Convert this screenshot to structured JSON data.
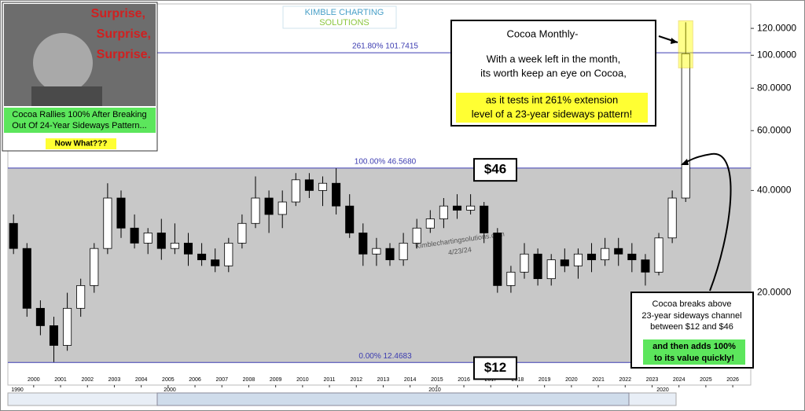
{
  "chart_data": {
    "type": "candlestick",
    "log_scale": true,
    "logo": [
      "KIMBLE CHARTING",
      "SOLUTIONS"
    ],
    "watermark": [
      "Kimblechartingsolutions.com",
      "4/23/24"
    ],
    "image_panel": {
      "headline": [
        "Surprise,",
        "Surprise,",
        "Surprise."
      ],
      "caption": [
        "Cocoa Rallies 100% After Breaking",
        "Out Of 24-Year Sideways Pattern..."
      ],
      "question": "Now What???"
    },
    "note_box": {
      "title": "Cocoa Monthly-",
      "lines": [
        "With a week left in the month,",
        "its worth keep an eye on Cocoa,"
      ],
      "highlight": [
        "as it tests int 261% extension",
        "level of a 23-year sideways pattern!"
      ]
    },
    "price_tags": [
      {
        "value": 46,
        "label": "$46"
      },
      {
        "value": 12,
        "label": "$12"
      }
    ],
    "breakout_box": {
      "lines": [
        "Cocoa breaks above",
        "23-year sideways channel",
        "between $12 and $46"
      ],
      "highlight": [
        "and then adds 100%",
        "to its value quickly!"
      ]
    },
    "levels": [
      {
        "value": 101.7415,
        "label": "261.80% 101.7415"
      },
      {
        "value": 46.568,
        "label": "100.00% 46.5680"
      },
      {
        "value": 12.4683,
        "label": "0.00% 12.4683"
      }
    ],
    "x": [
      1999.25,
      1999.75,
      2000.25,
      2000.75,
      2001.25,
      2001.75,
      2002.25,
      2002.75,
      2003.25,
      2003.75,
      2004.25,
      2004.75,
      2005.25,
      2005.75,
      2006.25,
      2006.75,
      2007.25,
      2007.75,
      2008.25,
      2008.75,
      2009.25,
      2009.75,
      2010.25,
      2010.75,
      2011.25,
      2011.75,
      2012.25,
      2012.75,
      2013.25,
      2013.75,
      2014.25,
      2014.75,
      2015.25,
      2015.75,
      2016.25,
      2016.75,
      2017.25,
      2017.75,
      2018.25,
      2018.75,
      2019.25,
      2019.75,
      2020.25,
      2020.75,
      2021.25,
      2021.75,
      2022.25,
      2022.75,
      2023.25,
      2023.75,
      2024.25
    ],
    "open": [
      32,
      27,
      18,
      16,
      14,
      18,
      21,
      27,
      38,
      31,
      28,
      30,
      27,
      28,
      26,
      25,
      24,
      28,
      32,
      38,
      34,
      37,
      43,
      40,
      42,
      36,
      30,
      26,
      27,
      25,
      28,
      31,
      33,
      36,
      35,
      36,
      30,
      21,
      23,
      26,
      22,
      25,
      24,
      26,
      25,
      27,
      26,
      25,
      23,
      29,
      38
    ],
    "high": [
      34,
      28,
      19,
      17,
      20,
      22,
      28,
      42,
      40,
      34,
      31,
      33,
      32,
      30,
      28,
      27,
      29,
      34,
      44,
      40,
      40,
      45,
      45,
      44,
      46.5,
      39,
      32,
      29,
      28,
      30,
      33,
      35,
      38,
      39,
      39,
      37,
      31,
      24,
      28,
      27,
      26,
      27,
      27,
      28,
      29,
      29,
      28,
      26,
      30,
      40,
      125
    ],
    "low": [
      26,
      17,
      15,
      12.5,
      13.5,
      17,
      20,
      26,
      29,
      27,
      26,
      25,
      26,
      24,
      24,
      23,
      23,
      27,
      31,
      30,
      31,
      36,
      38,
      36,
      34,
      29,
      24,
      24,
      24,
      24,
      27,
      30,
      31,
      33,
      34,
      28,
      20,
      20,
      22,
      21,
      21,
      23,
      22,
      23,
      24,
      24,
      23,
      21,
      22.5,
      28,
      37
    ],
    "close": [
      27,
      18,
      16,
      14,
      18,
      21,
      27,
      38,
      31,
      28,
      30,
      27,
      28,
      26,
      25,
      24,
      28,
      32,
      38,
      34,
      37,
      43,
      40,
      42,
      36,
      30,
      26,
      27,
      25,
      28,
      31,
      33,
      36,
      35,
      36,
      30,
      21,
      23,
      26,
      22,
      25,
      24,
      26,
      25,
      27,
      26,
      25,
      23,
      29,
      38,
      101
    ],
    "xlim": [
      1999.04,
      2026.67
    ],
    "xticks": [
      2000,
      2001,
      2002,
      2003,
      2004,
      2005,
      2006,
      2007,
      2008,
      2009,
      2010,
      2011,
      2012,
      2013,
      2014,
      2015,
      2016,
      2017,
      2018,
      2019,
      2020,
      2021,
      2022,
      2023,
      2024,
      2025,
      2026
    ],
    "ylim": [
      10.7,
      141.6
    ],
    "yticks": [
      {
        "value": 20,
        "label": "20.0000"
      },
      {
        "value": 40,
        "label": "40.0000"
      },
      {
        "value": 60,
        "label": "60.0000"
      },
      {
        "value": 80,
        "label": "80.0000"
      },
      {
        "value": 100,
        "label": "100.0000"
      },
      {
        "value": 120,
        "label": "120.0000"
      }
    ],
    "navigator_labels": [
      "1990",
      "2000",
      "2010",
      "2020"
    ],
    "up_color": "#ffffff",
    "down_color": "#000000",
    "level_color": "#3b3bb0",
    "channel_color": "#c8c8c8"
  }
}
